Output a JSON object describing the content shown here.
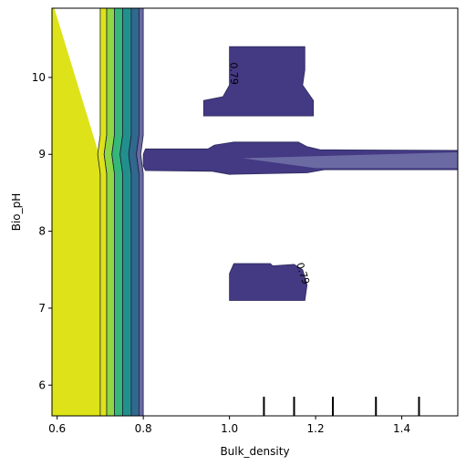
{
  "chart_data": {
    "type": "contour",
    "xlabel": "Bulk_density",
    "ylabel": "Bio_pH",
    "xlim": [
      0.588,
      1.53
    ],
    "ylim": [
      5.6,
      10.9
    ],
    "xticks": [
      {
        "value": 0.6,
        "label": "0.6"
      },
      {
        "value": 0.8,
        "label": "0.8"
      },
      {
        "value": 1.0,
        "label": "1.0"
      },
      {
        "value": 1.2,
        "label": "1.2"
      },
      {
        "value": 1.4,
        "label": "1.4"
      }
    ],
    "yticks": [
      {
        "value": 6,
        "label": "6"
      },
      {
        "value": 7,
        "label": "7"
      },
      {
        "value": 8,
        "label": "8"
      },
      {
        "value": 9,
        "label": "9"
      },
      {
        "value": 10,
        "label": "10"
      }
    ],
    "contour_labels": [
      {
        "text": "0.79",
        "x": 1.01,
        "y": 10.05,
        "rotation": 88
      },
      {
        "text": "0.79",
        "x": 1.17,
        "y": 7.45,
        "rotation": 72
      }
    ],
    "rug_x": [
      1.08,
      1.15,
      1.24,
      1.34,
      1.44
    ],
    "colors": {
      "yellow": "#dde318",
      "light_green": "#8fd744",
      "green": "#35b779",
      "teal": "#21908d",
      "blue": "#31688e",
      "purple": "#443983",
      "dark": "#2a2a5a",
      "light_purple": "#6b6aa3"
    },
    "bands": [
      {
        "x0": 0.7,
        "x1": 0.715,
        "color": "#dde318"
      },
      {
        "x0": 0.715,
        "x1": 0.733,
        "color": "#8fd744"
      },
      {
        "x0": 0.733,
        "x1": 0.752,
        "color": "#35b779"
      },
      {
        "x0": 0.752,
        "x1": 0.772,
        "color": "#21908d"
      },
      {
        "x0": 0.772,
        "x1": 0.79,
        "color": "#31688e"
      },
      {
        "x0": 0.79,
        "x1": 0.8,
        "color": "#6b6aa3"
      }
    ]
  }
}
